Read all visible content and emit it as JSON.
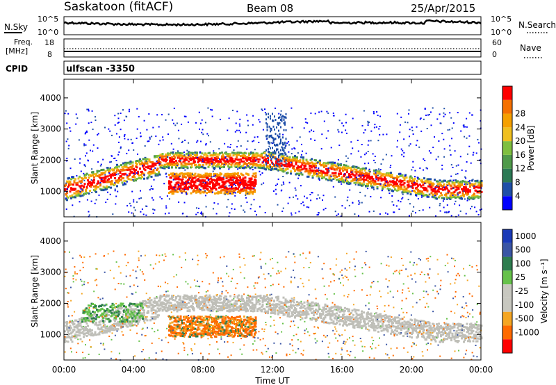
{
  "header": {
    "station": "Saskatoon (fitACF)",
    "beam": "Beam 08",
    "date": "25/Apr/2015"
  },
  "noise_panel": {
    "left_label": "N.Sky",
    "left_ticks": [
      "10^5",
      "10^0"
    ],
    "right_label": "N.Search",
    "right_ticks": [
      "10^5",
      "10^0"
    ]
  },
  "freq_panel": {
    "left_label_1": "Freq.",
    "left_label_2": "[MHz]",
    "left_ticks": [
      "18",
      "8"
    ],
    "right_label": "Nave",
    "right_ticks": [
      "60",
      "0"
    ]
  },
  "cpid_panel": {
    "label": "CPID",
    "value": "ulfscan -3350"
  },
  "colors": {
    "power": [
      "#0000ff",
      "#1f4fa8",
      "#2c7a55",
      "#4f9a4a",
      "#7fbf3f",
      "#f0c020",
      "#f5a000",
      "#f57000",
      "#ff0000"
    ],
    "velocity": [
      "#ff0000",
      "#ff6a00",
      "#f5a623",
      "#c8c8c0",
      "#c8c8c0",
      "#66c24a",
      "#2e7d4f",
      "#3a55a5",
      "#1a3ab8"
    ],
    "ground_scatter": "#bfbfb8"
  },
  "chart_data": [
    {
      "type": "heatmap",
      "name": "power",
      "ylabel": "Slant Range [km]",
      "y_ticks": [
        "1000",
        "2000",
        "3000",
        "4000"
      ],
      "ylim": [
        180,
        4600
      ],
      "x_ticks": [
        "00:00",
        "04:00",
        "08:00",
        "12:00",
        "16:00",
        "20:00",
        "00:00"
      ],
      "xlim_hours": [
        0,
        24
      ],
      "colorbar_label": "Power [dB]",
      "colorbar_ticks": [
        "4",
        "8",
        "12",
        "16",
        "20",
        "24",
        "28"
      ],
      "colorbar_range": [
        0,
        30
      ]
    },
    {
      "type": "heatmap",
      "name": "velocity",
      "ylabel": "Slant Range [km]",
      "y_ticks": [
        "1000",
        "2000",
        "3000",
        "4000"
      ],
      "ylim": [
        180,
        4600
      ],
      "x_ticks": [
        "00:00",
        "04:00",
        "08:00",
        "12:00",
        "16:00",
        "20:00",
        "00:00"
      ],
      "xlim_hours": [
        0,
        24
      ],
      "xlabel": "Time UT",
      "colorbar_label": "Velocity [m s⁻¹]",
      "colorbar_ticks": [
        "1000",
        "500",
        "100",
        "25",
        "-25",
        "-100",
        "-500",
        "-1000"
      ]
    }
  ]
}
